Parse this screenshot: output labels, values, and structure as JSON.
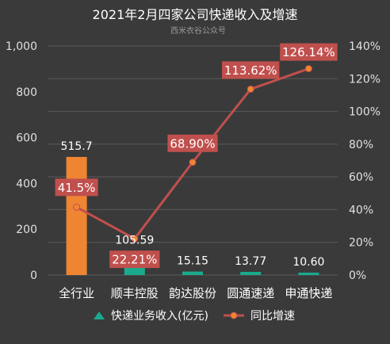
{
  "chart_data": {
    "type": "bar",
    "title": "2021年2月四家公司快递收入及增速",
    "subtitle": "西米衣谷公众号",
    "categories": [
      "全行业",
      "顺丰控股",
      "韵达股份",
      "圆通速递",
      "申通快递"
    ],
    "series": [
      {
        "name": "快递业务收入(亿元)",
        "type": "bar",
        "axis": "left",
        "values": [
          515.7,
          105.59,
          15.15,
          13.77,
          10.6
        ],
        "labels": [
          "515.7",
          "105.59",
          "15.15",
          "13.77",
          "10.60"
        ],
        "colors": [
          "#ef8532",
          "#1aaa8e",
          "#1aaa8e",
          "#1aaa8e",
          "#1aaa8e"
        ]
      },
      {
        "name": "同比增速",
        "type": "line",
        "axis": "right",
        "values": [
          41.5,
          22.21,
          68.9,
          113.62,
          126.14
        ],
        "labels": [
          "41.5%",
          "22.21%",
          "68.90%",
          "113.62%",
          "126.14%"
        ],
        "color": "#c0504d"
      }
    ],
    "y_left": {
      "min": 0,
      "max": 1000,
      "ticks": [
        "0",
        "200",
        "400",
        "600",
        "800",
        "1,000"
      ]
    },
    "y_right": {
      "min": 0,
      "max": 140,
      "ticks": [
        "0%",
        "20%",
        "40%",
        "60%",
        "80%",
        "100%",
        "120%",
        "140%"
      ]
    },
    "grid": true,
    "legend_position": "bottom"
  },
  "theme": {
    "background": "#3a3a3a",
    "text": "#ffffff",
    "axis_text": "#e0e0e0",
    "gridline": "#5a5a5a",
    "label_box": "#c0504d",
    "subtitle": "#9a9a9a"
  }
}
